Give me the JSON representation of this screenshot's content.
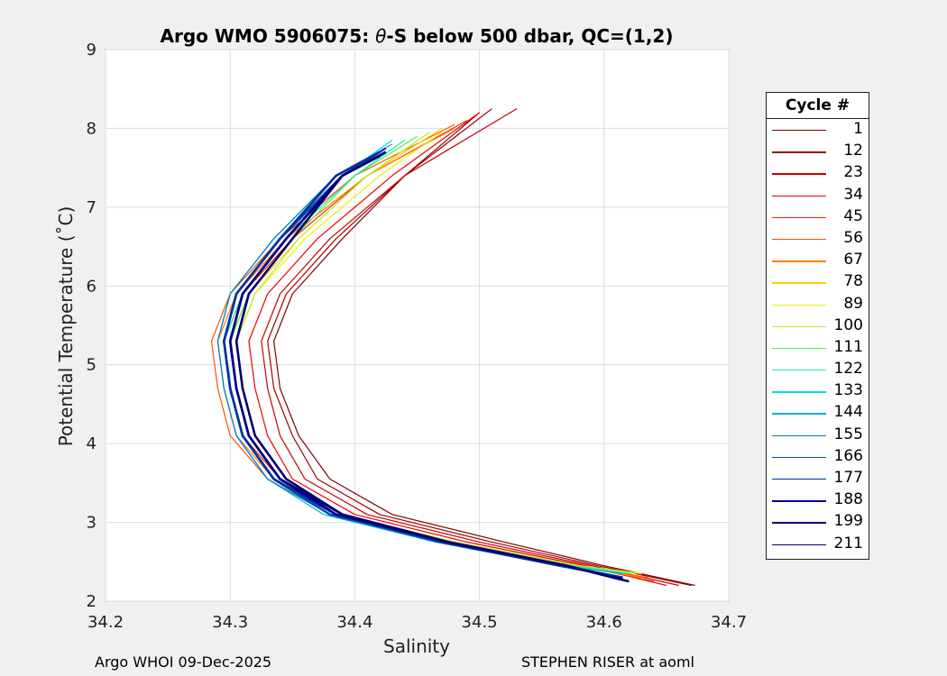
{
  "chart_data": {
    "type": "line",
    "title": "Argo WMO 5906075: θ-S below 500 dbar,  QC=(1,2)",
    "title_prefix": "Argo WMO 5906075: ",
    "title_theta": "θ",
    "title_suffix": "-S below 500 dbar,  QC=(1,2)",
    "xlabel": "Salinity",
    "ylabel": "Potential Temperature (˚C)",
    "xlim": [
      34.2,
      34.7
    ],
    "ylim": [
      2,
      9
    ],
    "xticks": [
      "34.2",
      "34.3",
      "34.4",
      "34.5",
      "34.6",
      "34.7"
    ],
    "yticks": [
      "2",
      "3",
      "4",
      "5",
      "6",
      "7",
      "8",
      "9"
    ],
    "grid": true,
    "legend_position": "right",
    "legend_title": "Cycle #",
    "series": [
      {
        "name": "1",
        "color": "#800000",
        "salinity": [
          34.673,
          34.6,
          34.52,
          34.43,
          34.38,
          34.355,
          34.34,
          34.335,
          34.35,
          34.39,
          34.44,
          34.5
        ],
        "theta": [
          2.2,
          2.45,
          2.75,
          3.1,
          3.55,
          4.1,
          4.7,
          5.3,
          5.9,
          6.6,
          7.4,
          8.2
        ]
      },
      {
        "name": "12",
        "color": "#a00000",
        "salinity": [
          34.67,
          34.595,
          34.51,
          34.42,
          34.37,
          34.35,
          34.335,
          34.33,
          34.345,
          34.385,
          34.44,
          34.51
        ],
        "theta": [
          2.2,
          2.45,
          2.75,
          3.1,
          3.55,
          4.1,
          4.7,
          5.3,
          5.9,
          6.6,
          7.4,
          8.25
        ]
      },
      {
        "name": "23",
        "color": "#c80000",
        "salinity": [
          34.66,
          34.59,
          34.5,
          34.41,
          34.36,
          34.34,
          34.33,
          34.325,
          34.34,
          34.38,
          34.44,
          34.53
        ],
        "theta": [
          2.2,
          2.45,
          2.75,
          3.1,
          3.55,
          4.1,
          4.7,
          5.3,
          5.9,
          6.6,
          7.4,
          8.25
        ]
      },
      {
        "name": "34",
        "color": "#f00000",
        "salinity": [
          34.65,
          34.585,
          34.49,
          34.4,
          34.35,
          34.33,
          34.32,
          34.315,
          34.33,
          34.37,
          34.43,
          34.5
        ],
        "theta": [
          2.2,
          2.45,
          2.75,
          3.1,
          3.55,
          4.1,
          4.7,
          5.3,
          5.9,
          6.6,
          7.4,
          8.2
        ]
      },
      {
        "name": "45",
        "color": "#ff2800",
        "salinity": [
          34.64,
          34.58,
          34.48,
          34.39,
          34.34,
          34.31,
          34.3,
          34.295,
          34.31,
          34.35,
          34.41,
          34.49
        ],
        "theta": [
          2.25,
          2.45,
          2.75,
          3.1,
          3.55,
          4.1,
          4.7,
          5.3,
          5.9,
          6.6,
          7.4,
          8.1
        ]
      },
      {
        "name": "56",
        "color": "#ff5000",
        "salinity": [
          34.635,
          34.575,
          34.47,
          34.38,
          34.33,
          34.3,
          34.29,
          34.285,
          34.3,
          34.34,
          34.4,
          34.48
        ],
        "theta": [
          2.3,
          2.45,
          2.75,
          3.1,
          3.55,
          4.1,
          4.7,
          5.3,
          5.9,
          6.6,
          7.4,
          8.05
        ]
      },
      {
        "name": "67",
        "color": "#ff8000",
        "salinity": [
          34.63,
          34.575,
          34.475,
          34.385,
          34.335,
          34.305,
          34.295,
          34.29,
          34.305,
          34.345,
          34.41,
          34.48
        ],
        "theta": [
          2.3,
          2.45,
          2.75,
          3.1,
          3.55,
          4.1,
          4.7,
          5.3,
          5.9,
          6.6,
          7.4,
          8.0
        ]
      },
      {
        "name": "78",
        "color": "#ffd000",
        "salinity": [
          34.63,
          34.58,
          34.48,
          34.39,
          34.34,
          34.315,
          34.305,
          34.3,
          34.315,
          34.355,
          34.41,
          34.47
        ],
        "theta": [
          2.35,
          2.45,
          2.75,
          3.1,
          3.55,
          4.1,
          4.7,
          5.3,
          5.9,
          6.6,
          7.4,
          8.0
        ]
      },
      {
        "name": "89",
        "color": "#f0f000",
        "salinity": [
          34.63,
          34.58,
          34.48,
          34.39,
          34.345,
          34.32,
          34.31,
          34.305,
          34.32,
          34.36,
          34.42,
          34.47
        ],
        "theta": [
          2.35,
          2.45,
          2.75,
          3.1,
          3.55,
          4.1,
          4.7,
          5.3,
          5.9,
          6.6,
          7.4,
          7.95
        ]
      },
      {
        "name": "100",
        "color": "#b0f030",
        "salinity": [
          34.625,
          34.58,
          34.48,
          34.39,
          34.345,
          34.32,
          34.31,
          34.305,
          34.32,
          34.355,
          34.41,
          34.46
        ],
        "theta": [
          2.35,
          2.45,
          2.75,
          3.1,
          3.55,
          4.1,
          4.7,
          5.3,
          5.9,
          6.6,
          7.4,
          7.95
        ]
      },
      {
        "name": "111",
        "color": "#50f050",
        "salinity": [
          34.62,
          34.575,
          34.475,
          34.385,
          34.34,
          34.315,
          34.305,
          34.3,
          34.315,
          34.35,
          34.4,
          34.45
        ],
        "theta": [
          2.35,
          2.45,
          2.75,
          3.1,
          3.55,
          4.1,
          4.7,
          5.3,
          5.9,
          6.6,
          7.4,
          7.9
        ]
      },
      {
        "name": "122",
        "color": "#20f0a0",
        "salinity": [
          34.62,
          34.57,
          34.47,
          34.38,
          34.335,
          34.31,
          34.3,
          34.295,
          34.31,
          34.345,
          34.4,
          34.44
        ],
        "theta": [
          2.35,
          2.45,
          2.75,
          3.1,
          3.55,
          4.1,
          4.7,
          5.3,
          5.9,
          6.6,
          7.4,
          7.85
        ]
      },
      {
        "name": "133",
        "color": "#00e0e0",
        "salinity": [
          34.615,
          34.57,
          34.47,
          34.38,
          34.335,
          34.31,
          34.3,
          34.295,
          34.305,
          34.34,
          34.39,
          34.43
        ],
        "theta": [
          2.35,
          2.45,
          2.75,
          3.1,
          3.55,
          4.1,
          4.7,
          5.3,
          5.9,
          6.6,
          7.4,
          7.85
        ]
      },
      {
        "name": "144",
        "color": "#00b0e0",
        "salinity": [
          34.615,
          34.565,
          34.465,
          34.375,
          34.33,
          34.305,
          34.295,
          34.29,
          34.3,
          34.335,
          34.385,
          34.43
        ],
        "theta": [
          2.35,
          2.45,
          2.75,
          3.1,
          3.55,
          4.1,
          4.7,
          5.3,
          5.9,
          6.6,
          7.4,
          7.8
        ]
      },
      {
        "name": "155",
        "color": "#0080c0",
        "salinity": [
          34.615,
          34.565,
          34.465,
          34.38,
          34.33,
          34.305,
          34.295,
          34.29,
          34.3,
          34.335,
          34.385,
          34.425
        ],
        "theta": [
          2.3,
          2.45,
          2.75,
          3.1,
          3.55,
          4.1,
          4.7,
          5.3,
          5.9,
          6.6,
          7.4,
          7.75
        ]
      },
      {
        "name": "166",
        "color": "#0050b0",
        "salinity": [
          34.615,
          34.565,
          34.47,
          34.38,
          34.335,
          34.31,
          34.3,
          34.295,
          34.305,
          34.34,
          34.39,
          34.425
        ],
        "theta": [
          2.3,
          2.45,
          2.75,
          3.1,
          3.55,
          4.1,
          4.7,
          5.3,
          5.9,
          6.6,
          7.4,
          7.75
        ]
      },
      {
        "name": "177",
        "color": "#0030a0",
        "salinity": [
          34.615,
          34.565,
          34.47,
          34.385,
          34.335,
          34.31,
          34.3,
          34.295,
          34.305,
          34.34,
          34.385,
          34.42
        ],
        "theta": [
          2.3,
          2.45,
          2.75,
          3.1,
          3.55,
          4.1,
          4.7,
          5.3,
          5.9,
          6.6,
          7.4,
          7.7
        ]
      },
      {
        "name": "188",
        "color": "#000090",
        "salinity": [
          34.615,
          34.57,
          34.475,
          34.385,
          34.34,
          34.315,
          34.305,
          34.3,
          34.31,
          34.345,
          34.39,
          34.425
        ],
        "theta": [
          2.28,
          2.45,
          2.75,
          3.1,
          3.55,
          4.1,
          4.7,
          5.3,
          5.9,
          6.6,
          7.4,
          7.7
        ]
      },
      {
        "name": "199",
        "color": "#000080",
        "salinity": [
          34.615,
          34.57,
          34.475,
          34.39,
          34.34,
          34.315,
          34.305,
          34.3,
          34.31,
          34.345,
          34.39,
          34.42
        ],
        "theta": [
          2.27,
          2.45,
          2.75,
          3.1,
          3.55,
          4.1,
          4.7,
          5.3,
          5.9,
          6.6,
          7.4,
          7.65
        ]
      },
      {
        "name": "211",
        "color": "#000070",
        "salinity": [
          34.62,
          34.57,
          34.475,
          34.39,
          34.345,
          34.32,
          34.31,
          34.305,
          34.315,
          34.35,
          34.39,
          34.42
        ],
        "theta": [
          2.25,
          2.45,
          2.75,
          3.1,
          3.55,
          4.1,
          4.7,
          5.3,
          5.9,
          6.6,
          7.4,
          7.65
        ]
      }
    ]
  },
  "footer": {
    "left": "Argo WHOI 09-Dec-2025",
    "right": "STEPHEN RISER at aoml"
  }
}
